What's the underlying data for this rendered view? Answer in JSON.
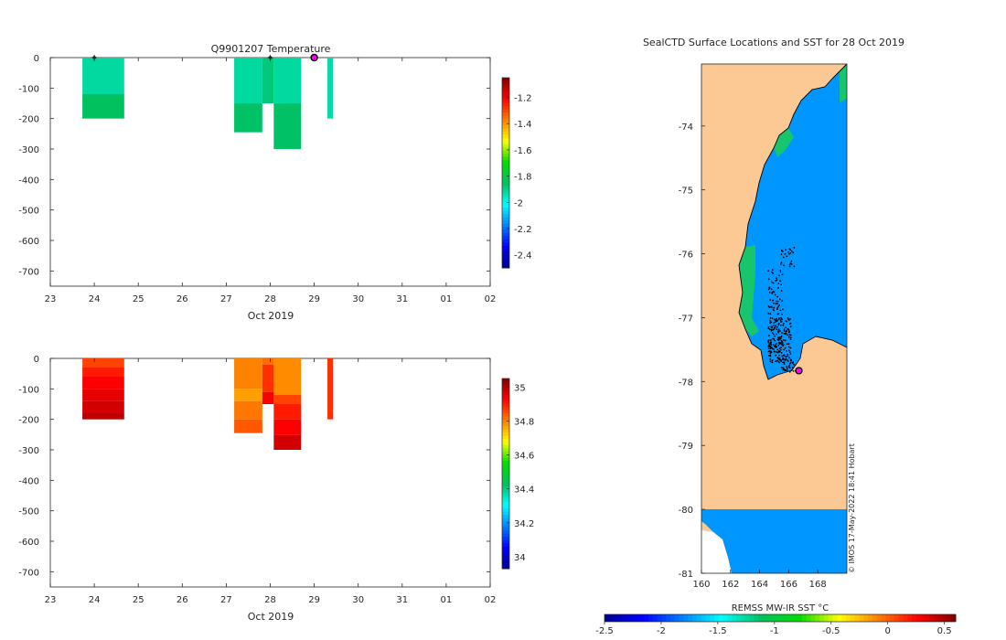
{
  "chart_data": [
    {
      "type": "heatmap",
      "title": "Q9901207  Temperature",
      "xlabel": "Oct 2019",
      "ylabel": "",
      "xlim": [
        23,
        33
      ],
      "ylim": [
        -750,
        0
      ],
      "x_ticks": [
        "23",
        "24",
        "25",
        "26",
        "27",
        "28",
        "29",
        "30",
        "31",
        "01",
        "02"
      ],
      "y_ticks": [
        "0",
        "-100",
        "-200",
        "-300",
        "-400",
        "-500",
        "-600",
        "-700"
      ],
      "colorbar": {
        "min": -2.5,
        "max": -1.05,
        "ticks": [
          "-1.2",
          "-1.4",
          "-1.6",
          "-1.8",
          "-2",
          "-2.2",
          "-2.4"
        ],
        "tick_values": [
          -1.2,
          -1.4,
          -1.6,
          -1.8,
          -2,
          -2.2,
          -2.4
        ]
      },
      "profiles": [
        {
          "x0": 23.73,
          "x1": 24.68,
          "bottom": -200,
          "layers": [
            {
              "top": 0,
              "bottom": -120,
              "value": -1.92
            },
            {
              "top": -120,
              "bottom": -200,
              "value": -1.85
            }
          ]
        },
        {
          "x0": 27.18,
          "x1": 27.82,
          "bottom": -245,
          "layers": [
            {
              "top": 0,
              "bottom": -150,
              "value": -1.92
            },
            {
              "top": -150,
              "bottom": -245,
              "value": -1.86
            }
          ]
        },
        {
          "x0": 27.82,
          "x1": 28.08,
          "bottom": -150,
          "layers": [
            {
              "top": 0,
              "bottom": -150,
              "value": -1.88
            }
          ]
        },
        {
          "x0": 28.08,
          "x1": 28.7,
          "bottom": -300,
          "layers": [
            {
              "top": 0,
              "bottom": -150,
              "value": -1.92
            },
            {
              "top": -150,
              "bottom": -300,
              "value": -1.86
            }
          ]
        },
        {
          "x0": 29.3,
          "x1": 29.43,
          "bottom": -200,
          "layers": [
            {
              "top": 0,
              "bottom": -200,
              "value": -1.93
            }
          ]
        }
      ],
      "markers": [
        {
          "x": 24.0,
          "style": "star"
        },
        {
          "x": 28.0,
          "style": "star"
        },
        {
          "x": 29.0,
          "style": "current"
        }
      ]
    },
    {
      "type": "heatmap",
      "title": "",
      "xlabel": "Oct 2019",
      "ylabel": "",
      "xlim": [
        23,
        33
      ],
      "ylim": [
        -750,
        0
      ],
      "x_ticks": [
        "23",
        "24",
        "25",
        "26",
        "27",
        "28",
        "29",
        "30",
        "31",
        "01",
        "02"
      ],
      "y_ticks": [
        "0",
        "-100",
        "-200",
        "-300",
        "-400",
        "-500",
        "-600",
        "-700"
      ],
      "colorbar": {
        "min": 33.93,
        "max": 35.05,
        "ticks": [
          "35",
          "34.8",
          "34.6",
          "34.4",
          "34.2",
          "34"
        ],
        "tick_values": [
          35,
          34.8,
          34.6,
          34.4,
          34.2,
          34
        ]
      },
      "profiles": [
        {
          "x0": 23.73,
          "x1": 24.68,
          "bottom": -200,
          "layers": [
            {
              "top": 0,
              "bottom": -30,
              "value": 34.86
            },
            {
              "top": -30,
              "bottom": -60,
              "value": 34.9
            },
            {
              "top": -60,
              "bottom": -100,
              "value": 34.93
            },
            {
              "top": -100,
              "bottom": -140,
              "value": 34.95
            },
            {
              "top": -140,
              "bottom": -180,
              "value": 34.97
            },
            {
              "top": -180,
              "bottom": -200,
              "value": 34.99
            }
          ]
        },
        {
          "x0": 27.18,
          "x1": 27.82,
          "bottom": -245,
          "layers": [
            {
              "top": 0,
              "bottom": -100,
              "value": 34.8
            },
            {
              "top": -100,
              "bottom": -140,
              "value": 34.77
            },
            {
              "top": -140,
              "bottom": -200,
              "value": 34.81
            },
            {
              "top": -200,
              "bottom": -245,
              "value": 34.84
            }
          ]
        },
        {
          "x0": 27.82,
          "x1": 28.08,
          "bottom": -150,
          "layers": [
            {
              "top": 0,
              "bottom": -20,
              "value": 34.82
            },
            {
              "top": -20,
              "bottom": -110,
              "value": 34.88
            },
            {
              "top": -110,
              "bottom": -150,
              "value": 34.93
            }
          ]
        },
        {
          "x0": 28.08,
          "x1": 28.7,
          "bottom": -300,
          "layers": [
            {
              "top": 0,
              "bottom": -120,
              "value": 34.79
            },
            {
              "top": -120,
              "bottom": -150,
              "value": 34.86
            },
            {
              "top": -150,
              "bottom": -200,
              "value": 34.9
            },
            {
              "top": -200,
              "bottom": -250,
              "value": 34.93
            },
            {
              "top": -250,
              "bottom": -300,
              "value": 34.97
            }
          ]
        },
        {
          "x0": 29.3,
          "x1": 29.43,
          "bottom": -200,
          "layers": [
            {
              "top": 0,
              "bottom": -200,
              "value": 34.88
            }
          ]
        }
      ]
    },
    {
      "type": "heatmap",
      "title": "SealCTD Surface Locations and SST for 28 Oct 2019",
      "xlabel": "",
      "ylabel": "",
      "xlim": [
        160,
        170
      ],
      "ylim": [
        -81,
        -73.03
      ],
      "x_ticks": [
        "160",
        "162",
        "164",
        "166",
        "168"
      ],
      "x_tick_values": [
        160,
        162,
        164,
        166,
        168
      ],
      "y_ticks": [
        "-74",
        "-75",
        "-76",
        "-77",
        "-78",
        "-79",
        "-80",
        "-81"
      ],
      "y_tick_values": [
        -74,
        -75,
        -76,
        -77,
        -78,
        -79,
        -80,
        -81
      ],
      "land_color": "#fcc995",
      "ocean_sst_color": "#0096ff",
      "coast_sst_color": "#17c66c",
      "track_color": "#000000",
      "current_location": {
        "lon": 166.7,
        "lat": -77.83
      },
      "colorbar": {
        "label": "REMSS MW-IR SST °C",
        "min": -2.5,
        "max": 0.6,
        "ticks": [
          "-2.5",
          "-2",
          "-1.5",
          "-1",
          "-0.5",
          "0",
          "0.5"
        ],
        "tick_values": [
          -2.5,
          -2,
          -1.5,
          -1,
          -0.5,
          0,
          0.5
        ]
      },
      "credit": "© IMOS 17-May-2022 18:41 Hobart"
    }
  ],
  "palette": [
    "#00008f",
    "#0000ff",
    "#0080ff",
    "#00ffff",
    "#00c060",
    "#00dd00",
    "#ffff00",
    "#ff8000",
    "#ff0000",
    "#800000"
  ],
  "marker_color": "#ff00ff"
}
